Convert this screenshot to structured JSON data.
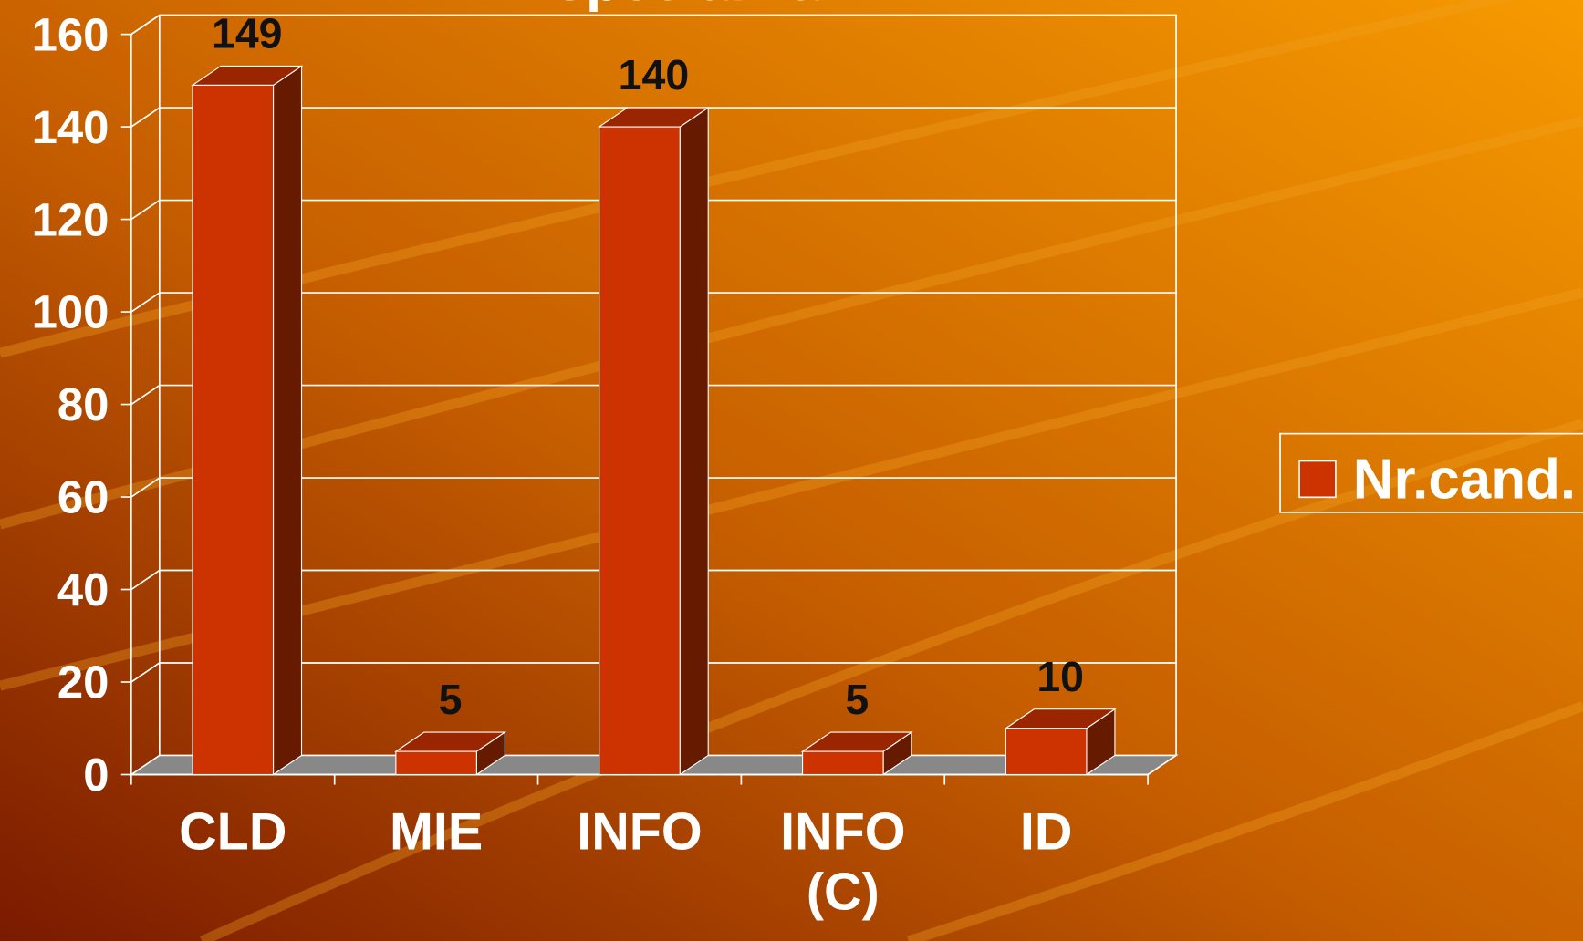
{
  "chart_data": {
    "type": "bar",
    "title": "specializari",
    "categories": [
      "CLD",
      "MIE",
      "INFO",
      "INFO (C)",
      "ID"
    ],
    "series": [
      {
        "name": "Nr.cand.",
        "color": "#cc3300",
        "values": [
          149,
          5,
          140,
          5,
          10
        ]
      }
    ],
    "ylim": [
      0,
      160
    ],
    "yticks": [
      0,
      20,
      40,
      60,
      80,
      100,
      120,
      140,
      160
    ],
    "grid": true,
    "legend": "right"
  }
}
